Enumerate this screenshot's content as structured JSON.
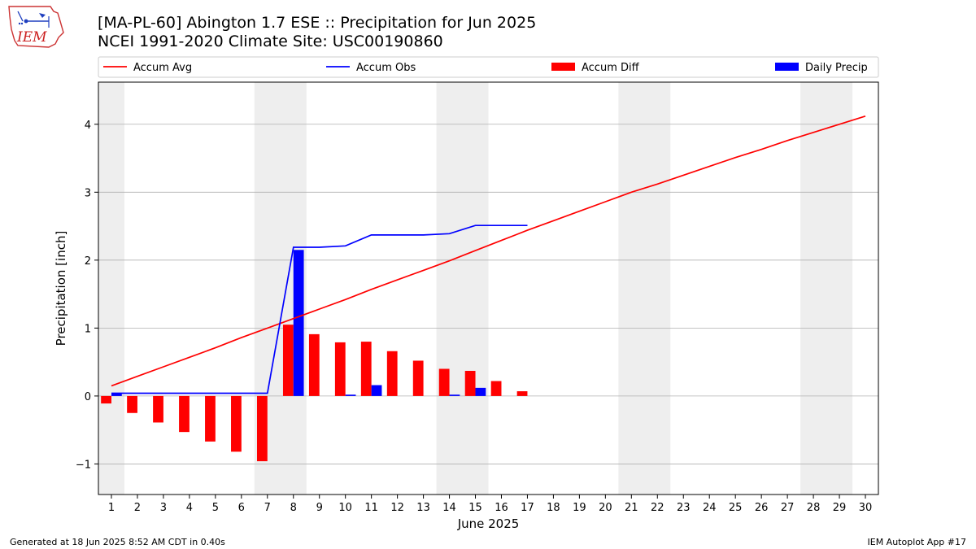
{
  "logo": {
    "text": "IEM"
  },
  "header": {
    "title": "[MA-PL-60] Abington 1.7 ESE :: Precipitation for Jun 2025",
    "subtitle": "NCEI 1991-2020 Climate Site: USC00190860"
  },
  "footer": {
    "left": "Generated at 18 Jun 2025 8:52 AM CDT in 0.40s",
    "right": "IEM Autoplot App #17"
  },
  "colors": {
    "avg": "#ff0000",
    "obs": "#0000ff",
    "diff": "#ff0000",
    "daily": "#0000ff",
    "weekend": "#eeeeee",
    "grid": "#b0b0b0"
  },
  "chart_data": {
    "type": "bar",
    "xlabel": "June 2025",
    "ylabel": "Precipitation [inch]",
    "xlim": [
      0.5,
      30.5
    ],
    "ylim": [
      -1.45,
      4.62
    ],
    "grid": true,
    "legend_position": "top",
    "x_ticks": [
      "1",
      "2",
      "3",
      "4",
      "5",
      "6",
      "7",
      "8",
      "9",
      "10",
      "11",
      "12",
      "13",
      "14",
      "15",
      "16",
      "17",
      "18",
      "19",
      "20",
      "21",
      "22",
      "23",
      "24",
      "25",
      "26",
      "27",
      "28",
      "29",
      "30"
    ],
    "y_ticks": [
      -1,
      0,
      1,
      2,
      3,
      4
    ],
    "y_tick_labels": [
      "−1",
      "0",
      "1",
      "2",
      "3",
      "4"
    ],
    "shaded_days": [
      [
        0.5,
        1.5
      ],
      [
        6.5,
        8.5
      ],
      [
        13.5,
        15.5
      ],
      [
        20.5,
        22.5
      ],
      [
        27.5,
        29.5
      ]
    ],
    "legend": [
      "Accum Avg",
      "Accum Obs",
      "Accum Diff",
      "Daily Precip"
    ],
    "series": [
      {
        "name": "Accum Avg",
        "kind": "line",
        "x": [
          1,
          2,
          3,
          4,
          5,
          6,
          7,
          8,
          9,
          10,
          11,
          12,
          13,
          14,
          15,
          16,
          17,
          18,
          19,
          20,
          21,
          22,
          23,
          24,
          25,
          26,
          27,
          28,
          29,
          30
        ],
        "values": [
          0.15,
          0.29,
          0.43,
          0.57,
          0.71,
          0.86,
          1.0,
          1.14,
          1.28,
          1.42,
          1.57,
          1.71,
          1.85,
          1.99,
          2.14,
          2.29,
          2.44,
          2.58,
          2.72,
          2.86,
          3.0,
          3.12,
          3.25,
          3.38,
          3.51,
          3.63,
          3.76,
          3.88,
          4.0,
          4.12
        ]
      },
      {
        "name": "Accum Obs",
        "kind": "line",
        "x": [
          1,
          2,
          3,
          4,
          5,
          6,
          7,
          8,
          9,
          10,
          11,
          12,
          13,
          14,
          15,
          16,
          17
        ],
        "values": [
          0.04,
          0.04,
          0.04,
          0.04,
          0.04,
          0.04,
          0.04,
          2.19,
          2.19,
          2.21,
          2.37,
          2.37,
          2.37,
          2.39,
          2.51,
          2.51,
          2.51
        ]
      },
      {
        "name": "Accum Diff",
        "kind": "bar",
        "x": [
          1,
          2,
          3,
          4,
          5,
          6,
          7,
          8,
          9,
          10,
          11,
          12,
          13,
          14,
          15,
          16,
          17
        ],
        "values": [
          -0.11,
          -0.25,
          -0.39,
          -0.53,
          -0.67,
          -0.82,
          -0.96,
          1.05,
          0.91,
          0.79,
          0.8,
          0.66,
          0.52,
          0.4,
          0.37,
          0.22,
          0.07
        ]
      },
      {
        "name": "Daily Precip",
        "kind": "bar",
        "x": [
          1,
          2,
          3,
          4,
          5,
          6,
          7,
          8,
          9,
          10,
          11,
          12,
          13,
          14,
          15,
          16,
          17
        ],
        "values": [
          0.04,
          0,
          0,
          0,
          0,
          0,
          0,
          2.15,
          0,
          0.02,
          0.16,
          0,
          0,
          0.02,
          0.12,
          0,
          0
        ]
      }
    ]
  }
}
